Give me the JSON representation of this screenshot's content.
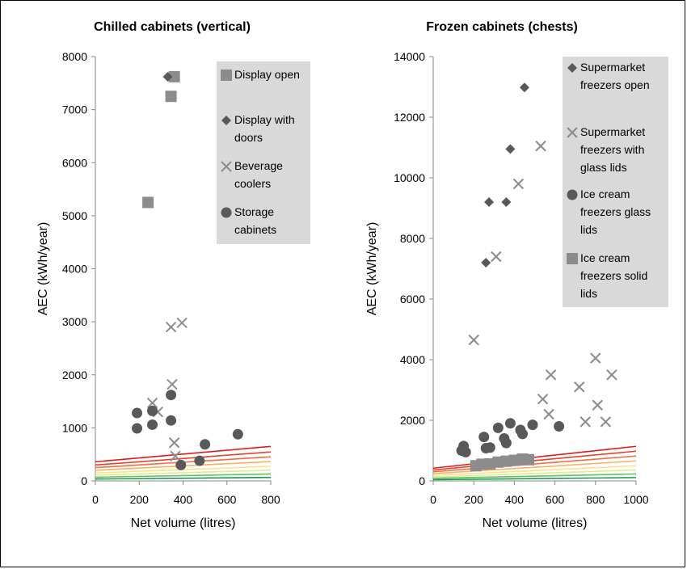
{
  "chart_data": [
    {
      "type": "scatter",
      "title": "Chilled cabinets (vertical)",
      "xlabel": "Net volume (litres)",
      "ylabel": "AEC (kWh/year)",
      "xlim": [
        0,
        800
      ],
      "ylim": [
        0,
        8000
      ],
      "xticks": [
        0,
        200,
        400,
        600,
        800
      ],
      "yticks": [
        0,
        1000,
        2000,
        3000,
        4000,
        5000,
        6000,
        7000,
        8000
      ],
      "legend": {
        "placement": "top-right",
        "entries": [
          {
            "name_lines": [
              "Display open"
            ],
            "marker": "square"
          },
          {
            "name_lines": [
              "Display with",
              "doors"
            ],
            "marker": "diamond"
          },
          {
            "name_lines": [
              "Beverage",
              "coolers"
            ],
            "marker": "cross"
          },
          {
            "name_lines": [
              "Storage",
              "cabinets"
            ],
            "marker": "circle"
          }
        ]
      },
      "series": [
        {
          "name": "Display open",
          "marker": "square",
          "points": [
            [
              240,
              5250
            ],
            [
              345,
              7250
            ],
            [
              360,
              7620
            ]
          ]
        },
        {
          "name": "Display with doors",
          "marker": "diamond",
          "points": [
            [
              330,
              7620
            ]
          ]
        },
        {
          "name": "Beverage coolers",
          "marker": "cross",
          "points": [
            [
              260,
              1470
            ],
            [
              285,
              1300
            ],
            [
              345,
              2900
            ],
            [
              350,
              1820
            ],
            [
              360,
              720
            ],
            [
              365,
              470
            ],
            [
              395,
              2980
            ]
          ]
        },
        {
          "name": "Storage cabinets",
          "marker": "circle",
          "points": [
            [
              190,
              1280
            ],
            [
              190,
              990
            ],
            [
              260,
              1320
            ],
            [
              260,
              1060
            ],
            [
              345,
              1620
            ],
            [
              345,
              1140
            ],
            [
              390,
              300
            ],
            [
              475,
              380
            ],
            [
              500,
              690
            ],
            [
              650,
              880
            ]
          ]
        }
      ],
      "threshold_lines": [
        {
          "color": "#e31a1c",
          "y_at_xmin": 360,
          "y_at_xmax": 650
        },
        {
          "color": "#e8412a",
          "y_at_xmin": 300,
          "y_at_xmax": 545
        },
        {
          "color": "#f46d43",
          "y_at_xmin": 250,
          "y_at_xmax": 455
        },
        {
          "color": "#fdae61",
          "y_at_xmin": 200,
          "y_at_xmax": 365
        },
        {
          "color": "#fee08b",
          "y_at_xmin": 150,
          "y_at_xmax": 275
        },
        {
          "color": "#d9ef8b",
          "y_at_xmin": 110,
          "y_at_xmax": 200
        },
        {
          "color": "#66bd63",
          "y_at_xmin": 70,
          "y_at_xmax": 130
        },
        {
          "color": "#1a9850",
          "y_at_xmin": 35,
          "y_at_xmax": 65
        }
      ]
    },
    {
      "type": "scatter",
      "title": "Frozen cabinets (chests)",
      "xlabel": "Net volume (litres)",
      "ylabel": "AEC (kWh/year)",
      "xlim": [
        0,
        1000
      ],
      "ylim": [
        0,
        14000
      ],
      "xticks": [
        0,
        200,
        400,
        600,
        800,
        1000
      ],
      "yticks": [
        0,
        2000,
        4000,
        6000,
        8000,
        10000,
        12000,
        14000
      ],
      "legend": {
        "placement": "top-right",
        "entries": [
          {
            "name_lines": [
              "Supermarket",
              "freezers open"
            ],
            "marker": "diamond"
          },
          {
            "name_lines": [
              "Supermarket",
              "freezers with",
              "glass lids"
            ],
            "marker": "cross"
          },
          {
            "name_lines": [
              "Ice cream",
              "freezers glass",
              "lids"
            ],
            "marker": "circle"
          },
          {
            "name_lines": [
              "Ice cream",
              "freezers solid",
              "lids"
            ],
            "marker": "square"
          }
        ]
      },
      "series": [
        {
          "name": "Supermarket freezers open",
          "marker": "diamond",
          "points": [
            [
              260,
              7200
            ],
            [
              275,
              9200
            ],
            [
              360,
              9200
            ],
            [
              380,
              10950
            ],
            [
              450,
              12980
            ]
          ]
        },
        {
          "name": "Supermarket freezers with glass lids",
          "marker": "cross",
          "points": [
            [
              200,
              4650
            ],
            [
              310,
              7400
            ],
            [
              420,
              9800
            ],
            [
              530,
              11050
            ],
            [
              540,
              2700
            ],
            [
              570,
              2200
            ],
            [
              580,
              3500
            ],
            [
              720,
              3100
            ],
            [
              750,
              1950
            ],
            [
              800,
              4050
            ],
            [
              810,
              2500
            ],
            [
              850,
              1950
            ],
            [
              880,
              3500
            ]
          ]
        },
        {
          "name": "Ice cream freezers glass lids",
          "marker": "circle",
          "points": [
            [
              140,
              1000
            ],
            [
              150,
              1150
            ],
            [
              160,
              950
            ],
            [
              250,
              1450
            ],
            [
              260,
              1080
            ],
            [
              280,
              1100
            ],
            [
              320,
              1750
            ],
            [
              350,
              1400
            ],
            [
              360,
              1250
            ],
            [
              380,
              1900
            ],
            [
              430,
              1680
            ],
            [
              440,
              1550
            ],
            [
              490,
              1850
            ],
            [
              620,
              1800
            ]
          ]
        },
        {
          "name": "Ice cream freezers solid lids",
          "marker": "square",
          "points": [
            [
              210,
              500
            ],
            [
              240,
              550
            ],
            [
              280,
              560
            ],
            [
              320,
              620
            ],
            [
              360,
              650
            ],
            [
              400,
              680
            ],
            [
              440,
              720
            ],
            [
              470,
              700
            ]
          ]
        }
      ],
      "threshold_lines": [
        {
          "color": "#e31a1c",
          "y_at_xmin": 420,
          "y_at_xmax": 1140
        },
        {
          "color": "#e8412a",
          "y_at_xmin": 360,
          "y_at_xmax": 980
        },
        {
          "color": "#f46d43",
          "y_at_xmin": 300,
          "y_at_xmax": 820
        },
        {
          "color": "#fdae61",
          "y_at_xmin": 240,
          "y_at_xmax": 660
        },
        {
          "color": "#fee08b",
          "y_at_xmin": 180,
          "y_at_xmax": 500
        },
        {
          "color": "#d9ef8b",
          "y_at_xmin": 130,
          "y_at_xmax": 360
        },
        {
          "color": "#66bd63",
          "y_at_xmin": 85,
          "y_at_xmax": 230
        },
        {
          "color": "#1a9850",
          "y_at_xmin": 40,
          "y_at_xmax": 110
        }
      ]
    }
  ],
  "colors": {
    "marker_dark": "#595959",
    "marker_light": "#8c8c8c",
    "legend_bg": "#d9d9d9",
    "axis": "#888888"
  }
}
